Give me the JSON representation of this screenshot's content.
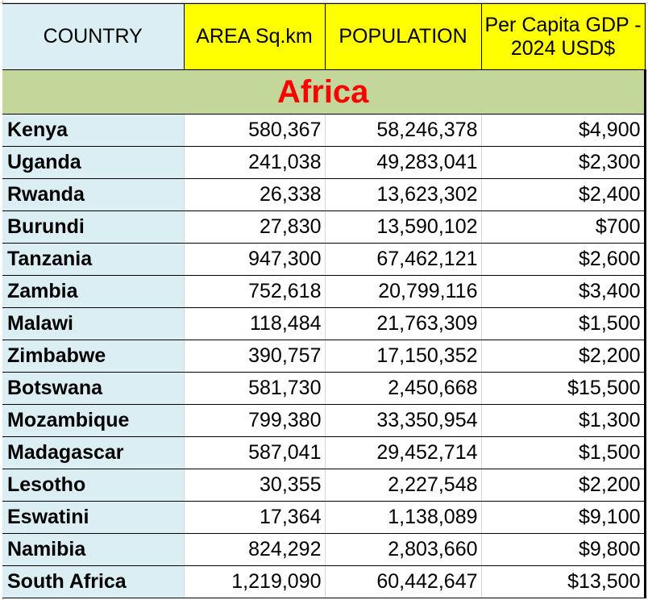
{
  "headers": [
    "COUNTRY",
    "AREA Sq.km",
    "POPULATION",
    "Per Capita GDP - 2024 USD$"
  ],
  "region": "Africa",
  "colors": {
    "country_bg": "#daeef3",
    "header_bg": "#ffff00",
    "region_bg": "#c4d79b",
    "region_text": "#ff0000"
  },
  "rows": [
    [
      "Kenya",
      "580,367",
      "58,246,378",
      "$4,900"
    ],
    [
      "Uganda",
      "241,038",
      "49,283,041",
      "$2,300"
    ],
    [
      "Rwanda",
      "26,338",
      "13,623,302",
      "$2,400"
    ],
    [
      "Burundi",
      "27,830",
      "13,590,102",
      "$700"
    ],
    [
      "Tanzania",
      "947,300",
      "67,462,121",
      "$2,600"
    ],
    [
      "Zambia",
      "752,618",
      "20,799,116",
      "$3,400"
    ],
    [
      "Malawi",
      "118,484",
      "21,763,309",
      "$1,500"
    ],
    [
      "Zimbabwe",
      "390,757",
      "17,150,352",
      "$2,200"
    ],
    [
      "Botswana",
      "581,730",
      "2,450,668",
      "$15,500"
    ],
    [
      "Mozambique",
      "799,380",
      "33,350,954",
      "$1,300"
    ],
    [
      "Madagascar",
      "587,041",
      "29,452,714",
      "$1,500"
    ],
    [
      "Lesotho",
      "30,355",
      "2,227,548",
      "$2,200"
    ],
    [
      "Eswatini",
      "17,364",
      "1,138,089",
      "$9,100"
    ],
    [
      "Namibia",
      "824,292",
      "2,803,660",
      "$9,800"
    ],
    [
      "South Africa",
      "1,219,090",
      "60,442,647",
      "$13,500"
    ]
  ]
}
